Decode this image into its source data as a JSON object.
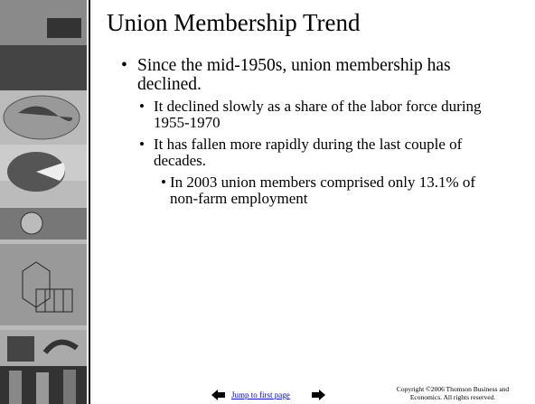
{
  "slide": {
    "title": "Union Membership Trend",
    "bullets": [
      {
        "text": "Since the mid-1950s, union membership has declined.",
        "children": [
          {
            "text": "It declined slowly as a share of the labor force during 1955-1970"
          },
          {
            "text": "It has fallen more rapidly during the last couple of decades.",
            "children": [
              {
                "text": "In 2003 union members comprised only 13.1% of non-farm employment"
              }
            ]
          }
        ]
      }
    ],
    "footer": {
      "link": "Jump to first page",
      "copyright": "Copyright ©2006  Thomson Business and Economics. All rights reserved."
    }
  }
}
